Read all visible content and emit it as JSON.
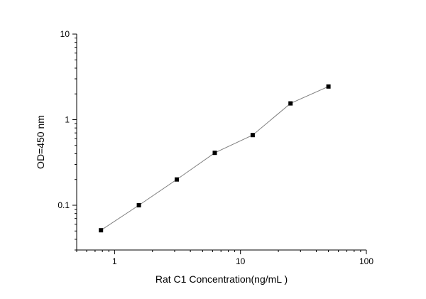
{
  "chart_data": {
    "type": "scatter",
    "title": "",
    "xlabel": "Rat C1 Concentration(ng/mL )",
    "ylabel": "OD=450 nm",
    "x_scale": "log",
    "y_scale": "log",
    "xlim": [
      0.5,
      100
    ],
    "ylim": [
      0.03,
      10
    ],
    "x_ticks": [
      {
        "value": 1,
        "label": "1"
      },
      {
        "value": 10,
        "label": "10"
      },
      {
        "value": 100,
        "label": "100"
      }
    ],
    "y_ticks": [
      {
        "value": 0.1,
        "label": "0.1"
      },
      {
        "value": 1,
        "label": "1"
      },
      {
        "value": 10,
        "label": "10"
      }
    ],
    "grid": false,
    "legend": "none",
    "marker": "square",
    "connected": true,
    "colors": {
      "marker": "#000000",
      "line": "#7f7f7f",
      "axis": "#000000"
    },
    "x": [
      0.78,
      1.56,
      3.12,
      6.25,
      12.5,
      25,
      50
    ],
    "y": [
      0.051,
      0.1,
      0.2,
      0.41,
      0.66,
      1.55,
      2.44
    ]
  }
}
